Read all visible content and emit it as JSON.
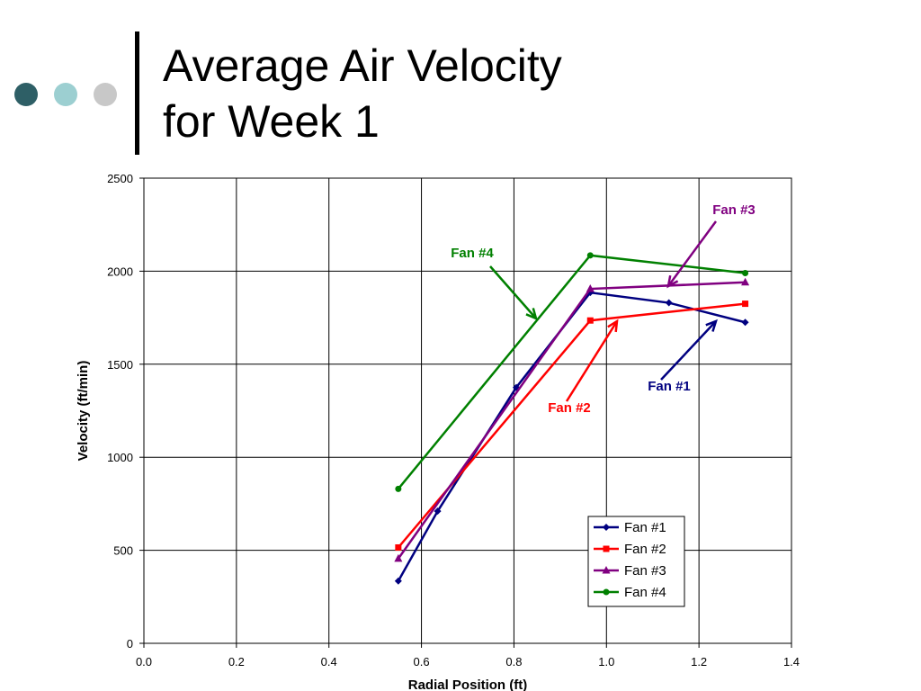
{
  "slide": {
    "title_line1": "Average Air Velocity",
    "title_line2": "for Week 1",
    "bullet_colors": [
      "#2e5f66",
      "#9ccfd1",
      "#c8c8c8"
    ]
  },
  "chart_data": {
    "type": "line",
    "title": "",
    "xlabel": "Radial Position (ft)",
    "ylabel": "Velocity (ft/min)",
    "xlim": [
      0,
      1.4
    ],
    "ylim": [
      0,
      2500
    ],
    "xticks": [
      "0.0",
      "0.2",
      "0.4",
      "0.6",
      "0.8",
      "1.0",
      "1.2",
      "1.4"
    ],
    "yticks": [
      "0",
      "500",
      "1000",
      "1500",
      "2000",
      "2500"
    ],
    "grid": true,
    "legend_position": "bottom-right",
    "series": [
      {
        "name": "Fan #1",
        "color": "#000080",
        "marker": "diamond",
        "x": [
          0.55,
          0.635,
          0.805,
          0.965,
          1.135,
          1.3
        ],
        "y": [
          335,
          710,
          1375,
          1885,
          1830,
          1725
        ]
      },
      {
        "name": "Fan #2",
        "color": "#ff0000",
        "marker": "square",
        "x": [
          0.55,
          0.965,
          1.3
        ],
        "y": [
          515,
          1735,
          1825
        ]
      },
      {
        "name": "Fan #3",
        "color": "#800080",
        "marker": "triangle",
        "x": [
          0.55,
          0.965,
          1.3
        ],
        "y": [
          455,
          1905,
          1940
        ]
      },
      {
        "name": "Fan #4",
        "color": "#008000",
        "marker": "circle",
        "x": [
          0.55,
          0.965,
          1.3
        ],
        "y": [
          830,
          2085,
          1990
        ]
      }
    ],
    "annotations": [
      {
        "text": "Fan #3",
        "color": "#800080"
      },
      {
        "text": "Fan #4",
        "color": "#008000"
      },
      {
        "text": "Fan #1",
        "color": "#000080"
      },
      {
        "text": "Fan #2",
        "color": "#ff0000"
      }
    ]
  }
}
